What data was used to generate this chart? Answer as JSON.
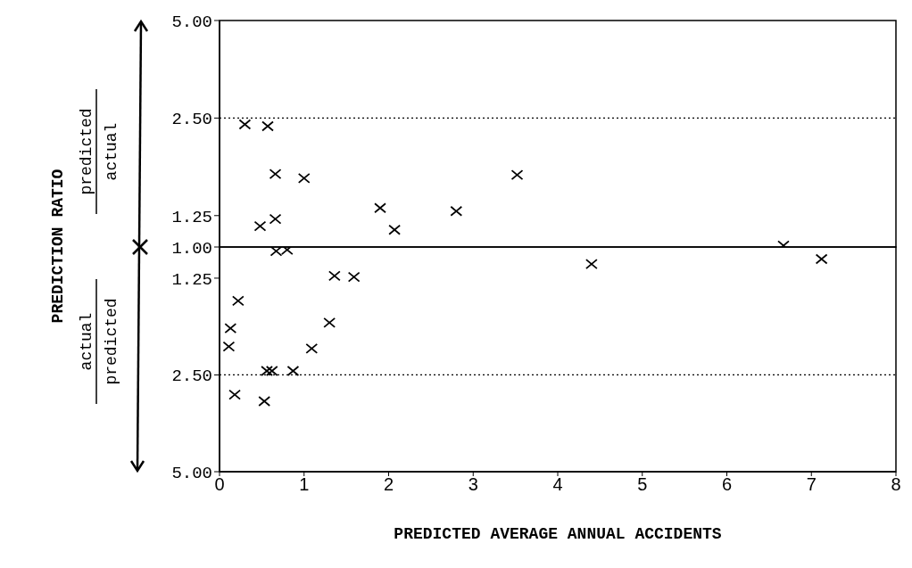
{
  "chart_data": [
    {
      "type": "scatter",
      "ylabel": "PREDICTION RATIO",
      "annotations": [
        "predicted",
        "actual"
      ],
      "x": [
        0.3,
        0.57,
        0.66,
        1.0,
        1.9,
        0.48,
        0.66,
        2.07,
        2.8,
        3.52,
        6.67
      ],
      "series": [
        {
          "color": "#000000",
          "values": [
            2.39,
            2.36,
            1.68,
            1.63,
            1.32,
            1.16,
            1.22,
            1.13,
            1.29,
            1.67,
            1.01
          ]
        }
      ],
      "xlim": [
        0,
        8
      ],
      "xticks": [
        0,
        1,
        2,
        3,
        4,
        5,
        6,
        7,
        8
      ],
      "ylim": [
        1,
        5
      ],
      "log": "y",
      "yticks": [
        {
          "value": 1,
          "label": "1.00"
        },
        1.25,
        {
          "value": 2.5,
          "label": "2.50"
        },
        {
          "value": 5,
          "label": "5.00"
        }
      ],
      "ref_lines": [
        {
          "axis": "y",
          "value": 2.5,
          "line_style": "dotted"
        }
      ],
      "tick_labels": "y",
      "marker": "cross",
      "grid": false,
      "legend": false
    },
    {
      "type": "scatter",
      "xlabel": "PREDICTED AVERAGE ANNUAL ACCIDENTS",
      "annotations": [
        "actual",
        "predicted"
      ],
      "x": [
        0.67,
        0.8,
        7.12,
        4.4,
        1.36,
        1.59,
        0.22,
        0.13,
        0.11,
        1.3,
        1.09,
        0.56,
        0.62,
        0.87,
        0.18,
        0.53
      ],
      "series": [
        {
          "color": "#000000",
          "values": [
            1.03,
            1.02,
            1.09,
            1.13,
            1.23,
            1.24,
            1.47,
            1.79,
            2.04,
            1.72,
            2.07,
            2.43,
            2.43,
            2.43,
            2.88,
            3.02
          ]
        }
      ],
      "xlim": [
        0,
        8
      ],
      "xticks": [
        0,
        1,
        2,
        3,
        4,
        5,
        6,
        7,
        8
      ],
      "ylim": [
        5,
        1
      ],
      "log": "y",
      "yticks": [
        1.25,
        {
          "value": 2.5,
          "label": "2.50"
        },
        {
          "value": 5,
          "label": "5.00"
        }
      ],
      "ref_lines": [
        {
          "axis": "y",
          "value": 2.5,
          "line_style": "dotted"
        }
      ],
      "marker": "cross",
      "grid": false,
      "legend": false
    }
  ]
}
